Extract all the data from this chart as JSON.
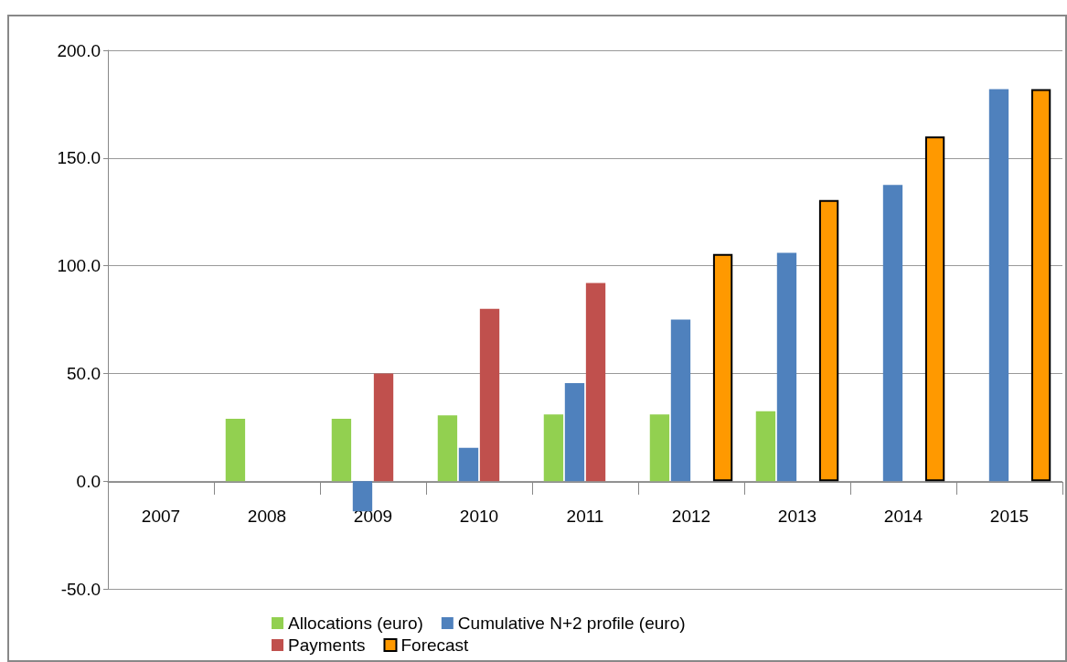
{
  "chart_data": {
    "type": "bar",
    "categories": [
      "2007",
      "2008",
      "2009",
      "2010",
      "2011",
      "2012",
      "2013",
      "2014",
      "2015"
    ],
    "series": [
      {
        "name": "Allocations (euro)",
        "color": "#92d050",
        "values": [
          null,
          29,
          29,
          30.5,
          31,
          31,
          32.5,
          null,
          null
        ]
      },
      {
        "name": "Cumulative N+2 profile (euro)",
        "color": "#4f81bd",
        "values": [
          null,
          null,
          -14,
          15.5,
          45.5,
          75,
          106,
          137.5,
          182
        ]
      },
      {
        "name": "Payments",
        "color": "#c0504d",
        "values": [
          null,
          null,
          50,
          80,
          92,
          null,
          null,
          null,
          null
        ]
      },
      {
        "name": "Forecast",
        "color": "#ff9900",
        "values": [
          null,
          null,
          null,
          null,
          null,
          105.5,
          130.5,
          160,
          182
        ]
      }
    ],
    "ylim": [
      -50,
      200
    ],
    "yticks": [
      {
        "value": -50,
        "label": "-50.0"
      },
      {
        "value": 0,
        "label": "0.0"
      },
      {
        "value": 50,
        "label": "50.0"
      },
      {
        "value": 100,
        "label": "100.0"
      },
      {
        "value": 150,
        "label": "150.0"
      },
      {
        "value": 200,
        "label": "200.0"
      }
    ],
    "grid": "y",
    "legend": "bottom"
  }
}
